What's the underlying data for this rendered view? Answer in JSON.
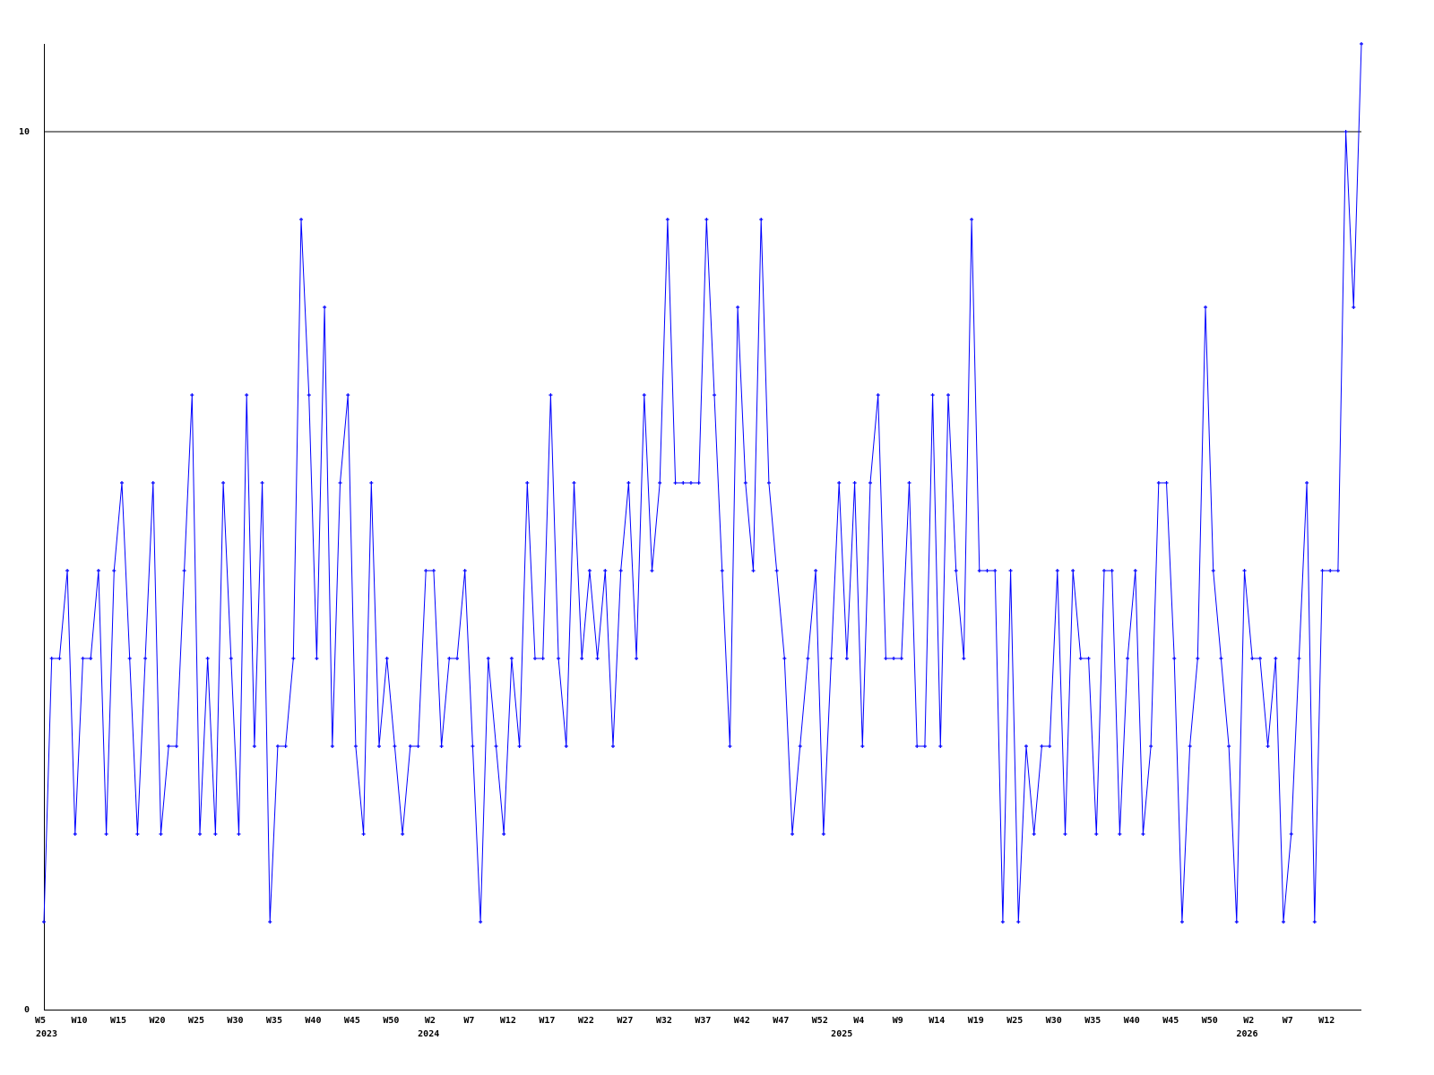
{
  "chart_data": {
    "type": "line",
    "title": "",
    "xlabel": "",
    "ylabel": "",
    "ylim": [
      0,
      11
    ],
    "y_ticks": [
      {
        "value": 0,
        "label": "0"
      },
      {
        "value": 10,
        "label": "10"
      }
    ],
    "reference_line": 10,
    "grid": false,
    "legend": "none",
    "colors": {
      "series": "#0000ff",
      "axes": "#000000"
    },
    "x_ticks": [
      {
        "index": 0,
        "label": "W5"
      },
      {
        "index": 5,
        "label": "W10"
      },
      {
        "index": 10,
        "label": "W15"
      },
      {
        "index": 15,
        "label": "W20"
      },
      {
        "index": 20,
        "label": "W25"
      },
      {
        "index": 25,
        "label": "W30"
      },
      {
        "index": 30,
        "label": "W35"
      },
      {
        "index": 35,
        "label": "W40"
      },
      {
        "index": 40,
        "label": "W45"
      },
      {
        "index": 45,
        "label": "W50"
      },
      {
        "index": 50,
        "label": "W2"
      },
      {
        "index": 55,
        "label": "W7"
      },
      {
        "index": 60,
        "label": "W12"
      },
      {
        "index": 65,
        "label": "W17"
      },
      {
        "index": 70,
        "label": "W22"
      },
      {
        "index": 75,
        "label": "W27"
      },
      {
        "index": 80,
        "label": "W32"
      },
      {
        "index": 85,
        "label": "W37"
      },
      {
        "index": 90,
        "label": "W42"
      },
      {
        "index": 95,
        "label": "W47"
      },
      {
        "index": 100,
        "label": "W52"
      },
      {
        "index": 105,
        "label": "W4"
      },
      {
        "index": 110,
        "label": "W9"
      },
      {
        "index": 115,
        "label": "W14"
      },
      {
        "index": 120,
        "label": "W19"
      },
      {
        "index": 125,
        "label": "W25"
      },
      {
        "index": 130,
        "label": "W30"
      },
      {
        "index": 135,
        "label": "W35"
      },
      {
        "index": 140,
        "label": "W40"
      },
      {
        "index": 145,
        "label": "W45"
      },
      {
        "index": 150,
        "label": "W50"
      },
      {
        "index": 155,
        "label": "W2"
      },
      {
        "index": 160,
        "label": "W7"
      },
      {
        "index": 165,
        "label": "W12"
      }
    ],
    "year_labels": [
      {
        "index": 0,
        "label": "2023"
      },
      {
        "index": 49,
        "label": "2024"
      },
      {
        "index": 102,
        "label": "2025"
      },
      {
        "index": 154,
        "label": "2026"
      }
    ],
    "values": [
      1,
      4,
      4,
      5,
      2,
      4,
      4,
      5,
      2,
      5,
      6,
      4,
      2,
      4,
      6,
      2,
      3,
      3,
      5,
      7,
      2,
      4,
      2,
      6,
      4,
      2,
      7,
      3,
      6,
      1,
      3,
      3,
      4,
      9,
      7,
      4,
      8,
      3,
      6,
      7,
      3,
      2,
      6,
      3,
      4,
      3,
      2,
      3,
      3,
      5,
      5,
      3,
      4,
      4,
      5,
      3,
      1,
      4,
      3,
      2,
      4,
      3,
      6,
      4,
      4,
      7,
      4,
      3,
      6,
      4,
      5,
      4,
      5,
      3,
      5,
      6,
      4,
      7,
      5,
      6,
      9,
      6,
      6,
      6,
      6,
      9,
      7,
      5,
      3,
      8,
      6,
      5,
      9,
      6,
      5,
      4,
      2,
      3,
      4,
      5,
      2,
      4,
      6,
      4,
      6,
      3,
      6,
      7,
      4,
      4,
      4,
      6,
      3,
      3,
      7,
      3,
      7,
      5,
      4,
      9,
      5,
      5,
      5,
      1,
      5,
      1,
      3,
      2,
      3,
      3,
      5,
      2,
      5,
      4,
      4,
      2,
      5,
      5,
      2,
      4,
      5,
      2,
      3,
      6,
      6,
      4,
      1,
      3,
      4,
      8,
      5,
      4,
      3,
      1,
      5,
      4,
      4,
      3,
      4,
      1,
      2,
      4,
      6,
      1,
      5,
      5,
      5,
      10,
      8,
      11
    ]
  }
}
